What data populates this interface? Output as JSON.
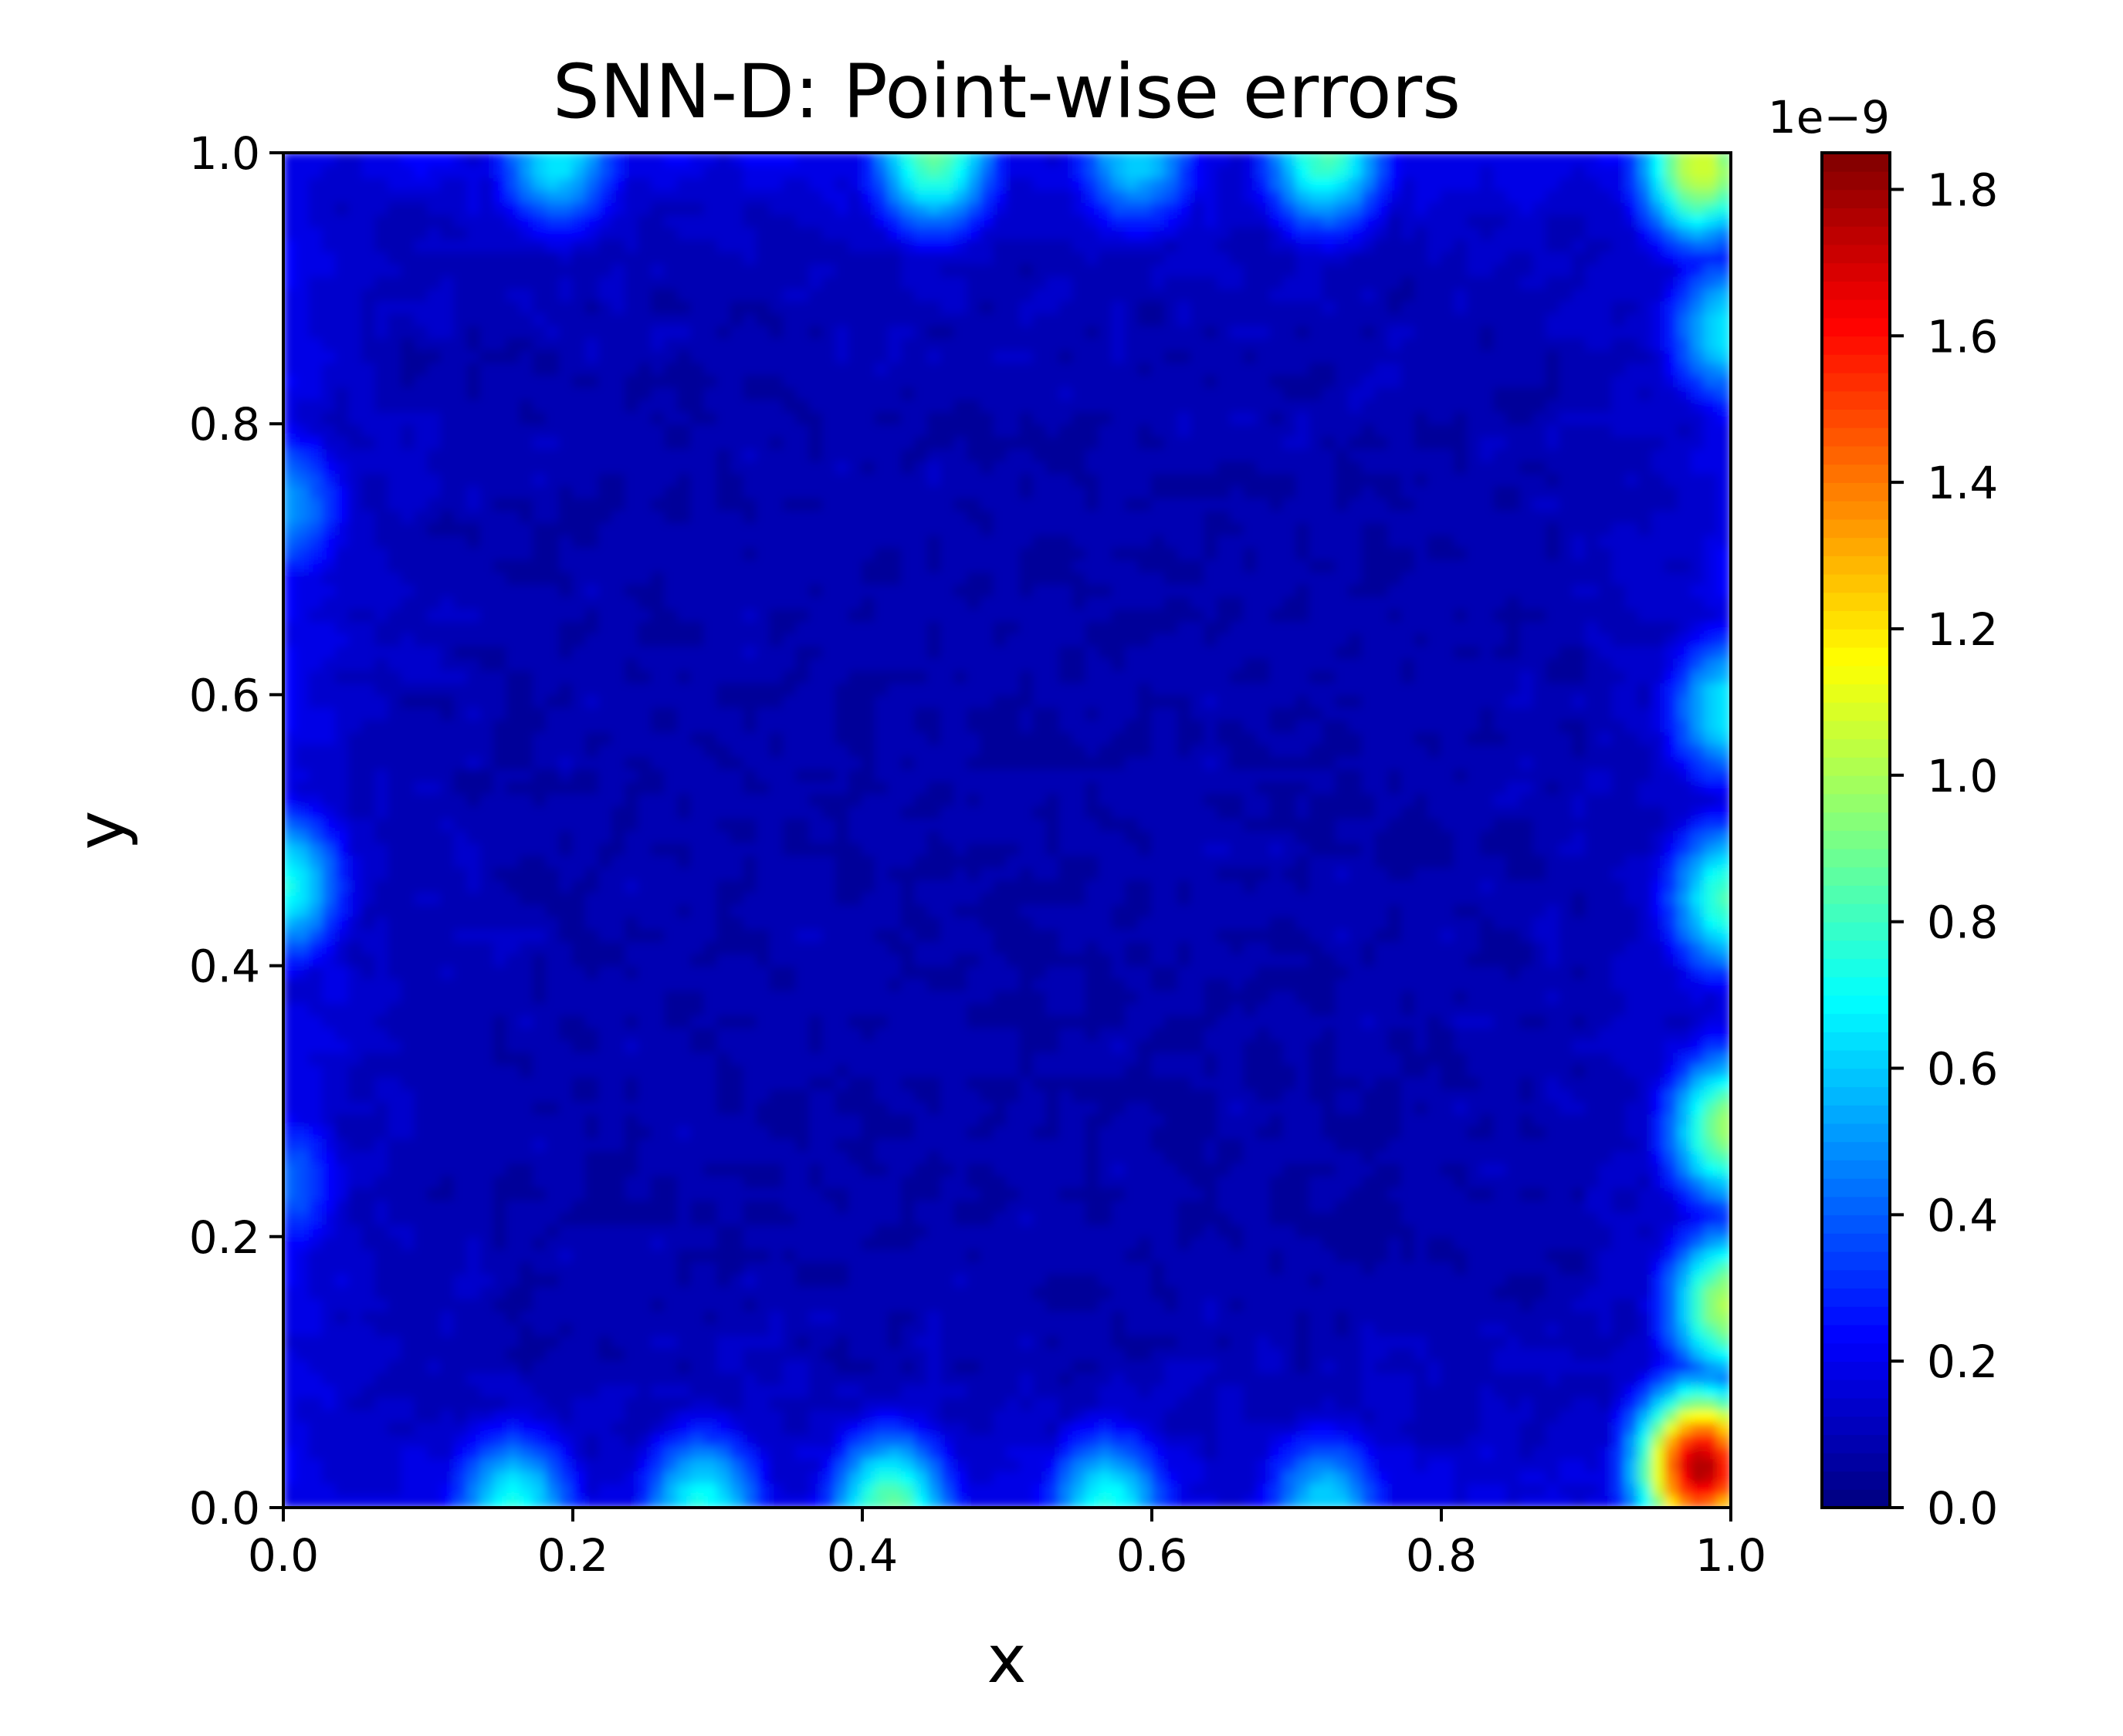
{
  "chart_data": {
    "type": "heatmap",
    "title": "SNN-D: Point-wise errors",
    "xlabel": "x",
    "ylabel": "y",
    "xlim": [
      0.0,
      1.0
    ],
    "ylim": [
      0.0,
      1.0
    ],
    "x_ticks": [
      "0.0",
      "0.2",
      "0.4",
      "0.6",
      "0.8",
      "1.0"
    ],
    "y_ticks": [
      "0.0",
      "0.2",
      "0.4",
      "0.6",
      "0.8",
      "1.0"
    ],
    "colormap": "jet",
    "colorbar": {
      "min": 0.0,
      "max": 1.85,
      "ticks": [
        "0.0",
        "0.2",
        "0.4",
        "0.6",
        "0.8",
        "1.0",
        "1.2",
        "1.4",
        "1.6",
        "1.8"
      ],
      "offset_label": "1e−9"
    },
    "field_summary": {
      "interior_level": 0.1,
      "boundary_hotspots": [
        {
          "x": 0.16,
          "y": 0.0,
          "value": 0.75
        },
        {
          "x": 0.29,
          "y": 0.0,
          "value": 0.75
        },
        {
          "x": 0.42,
          "y": 0.0,
          "value": 0.9
        },
        {
          "x": 0.57,
          "y": 0.0,
          "value": 0.75
        },
        {
          "x": 0.72,
          "y": 0.0,
          "value": 0.65
        },
        {
          "x": 0.98,
          "y": 0.03,
          "value": 1.8
        },
        {
          "x": 1.0,
          "y": 0.15,
          "value": 1.05
        },
        {
          "x": 1.0,
          "y": 0.28,
          "value": 1.0
        },
        {
          "x": 1.0,
          "y": 0.45,
          "value": 0.85
        },
        {
          "x": 1.0,
          "y": 0.59,
          "value": 0.7
        },
        {
          "x": 1.0,
          "y": 0.87,
          "value": 0.7
        },
        {
          "x": 0.98,
          "y": 0.99,
          "value": 1.1
        },
        {
          "x": 0.19,
          "y": 1.0,
          "value": 0.7
        },
        {
          "x": 0.45,
          "y": 1.0,
          "value": 0.9
        },
        {
          "x": 0.59,
          "y": 1.0,
          "value": 0.65
        },
        {
          "x": 0.72,
          "y": 1.0,
          "value": 0.85
        },
        {
          "x": 0.0,
          "y": 0.46,
          "value": 0.75
        },
        {
          "x": 0.0,
          "y": 0.74,
          "value": 0.55
        },
        {
          "x": 0.0,
          "y": 0.24,
          "value": 0.45
        }
      ]
    }
  }
}
